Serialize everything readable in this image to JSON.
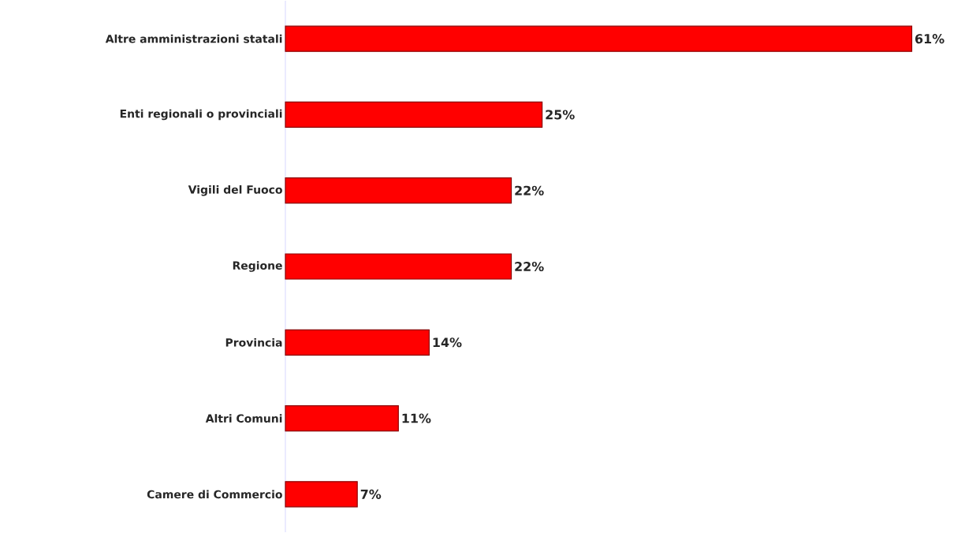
{
  "chart_data": {
    "type": "bar",
    "orientation": "horizontal",
    "categories": [
      "Altre amministrazioni statali",
      "Enti regionali o provinciali",
      "Vigili del Fuoco",
      "Regione",
      "Provincia",
      "Altri Comuni",
      "Camere di Commercio"
    ],
    "values": [
      61,
      25,
      22,
      22,
      14,
      11,
      7
    ],
    "value_labels": [
      "61%",
      "25%",
      "22%",
      "22%",
      "14%",
      "11%",
      "7%"
    ],
    "color": "#ff0000"
  }
}
